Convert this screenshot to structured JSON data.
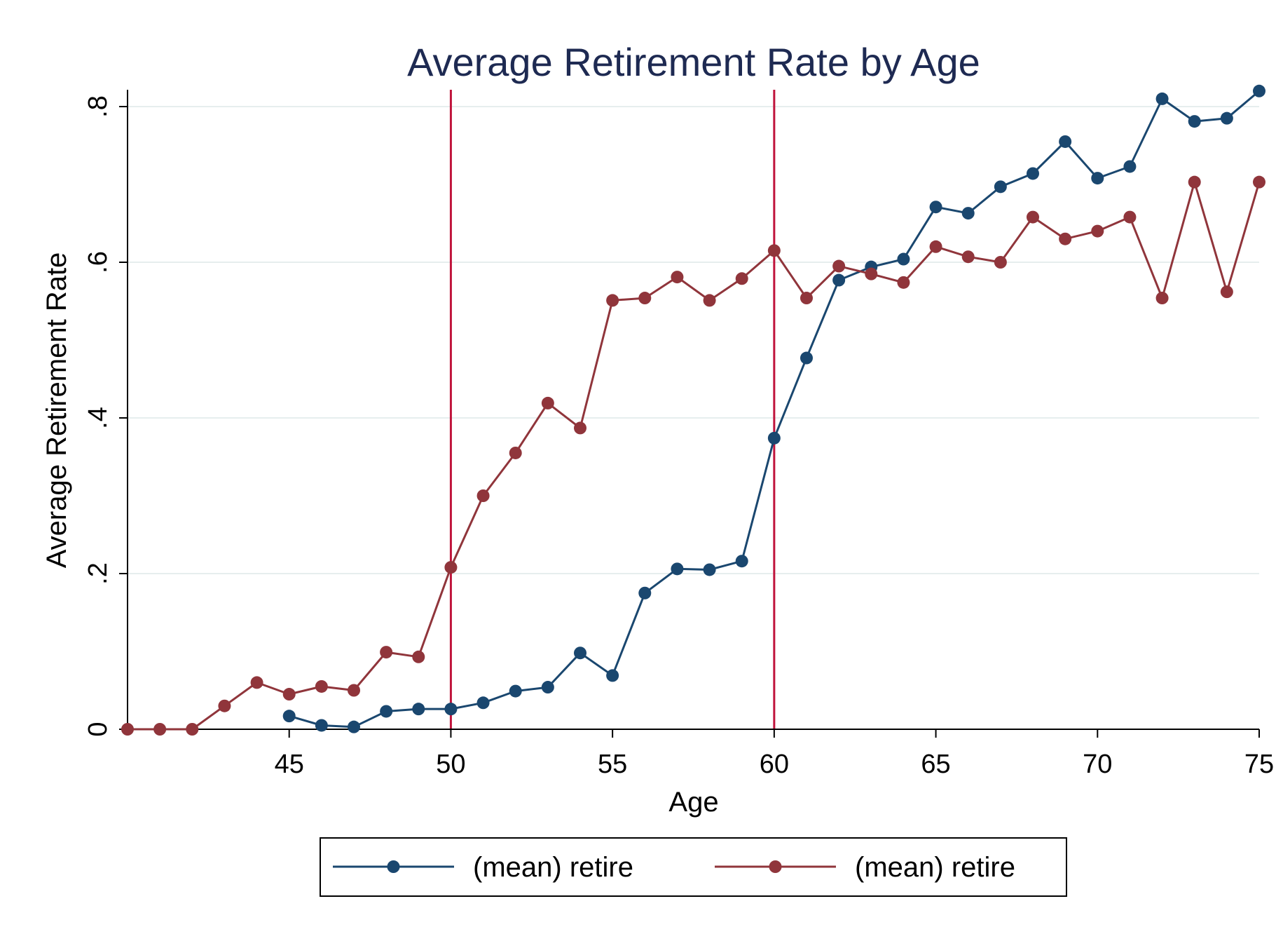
{
  "chart_data": {
    "type": "line",
    "title": "Average Retirement Rate by Age",
    "xlabel": "Age",
    "ylabel": "Average Retirement Rate",
    "xlim": [
      40,
      75
    ],
    "ylim": [
      0,
      0.8
    ],
    "x_ticks": [
      45,
      50,
      55,
      60,
      65,
      70,
      75
    ],
    "x_tick_labels": [
      "45",
      "50",
      "55",
      "60",
      "65",
      "70",
      "75"
    ],
    "y_ticks": [
      0,
      0.2,
      0.4,
      0.6,
      0.8
    ],
    "y_tick_labels": [
      "0",
      ".2",
      ".4",
      ".6",
      ".8"
    ],
    "grid": true,
    "legend_position": "bottom",
    "reference_lines": [
      {
        "axis": "x",
        "value": 50,
        "color": "#c0143c"
      },
      {
        "axis": "x",
        "value": 60,
        "color": "#c0143c"
      }
    ],
    "series": [
      {
        "name": "(mean) retire",
        "color": "#1a476f",
        "x": [
          45,
          46,
          47,
          48,
          49,
          50,
          51,
          52,
          53,
          54,
          55,
          56,
          57,
          58,
          59,
          60,
          61,
          62,
          63,
          64,
          65,
          66,
          67,
          68,
          69,
          70,
          71,
          72,
          73,
          74,
          75
        ],
        "y": [
          0.017,
          0.005,
          0.003,
          0.023,
          0.026,
          0.026,
          0.034,
          0.049,
          0.054,
          0.098,
          0.069,
          0.175,
          0.206,
          0.205,
          0.216,
          0.374,
          0.477,
          0.577,
          0.594,
          0.604,
          0.671,
          0.663,
          0.697,
          0.714,
          0.755,
          0.708,
          0.723,
          0.81,
          0.781,
          0.785,
          0.82
        ]
      },
      {
        "name": "(mean) retire",
        "color": "#90353b",
        "x": [
          40,
          41,
          42,
          43,
          44,
          45,
          46,
          47,
          48,
          49,
          50,
          51,
          52,
          53,
          54,
          55,
          56,
          57,
          58,
          59,
          60,
          61,
          62,
          63,
          64,
          65,
          66,
          67,
          68,
          69,
          70,
          71,
          72,
          73,
          74,
          75
        ],
        "y": [
          0,
          0,
          0,
          0.03,
          0.06,
          0.045,
          0.055,
          0.05,
          0.099,
          0.093,
          0.208,
          0.3,
          0.355,
          0.419,
          0.387,
          0.551,
          0.554,
          0.581,
          0.551,
          0.579,
          0.615,
          0.554,
          0.595,
          0.585,
          0.574,
          0.62,
          0.607,
          0.6,
          0.658,
          0.63,
          0.64,
          0.658,
          0.554,
          0.703,
          0.562,
          0.703
        ]
      }
    ]
  }
}
